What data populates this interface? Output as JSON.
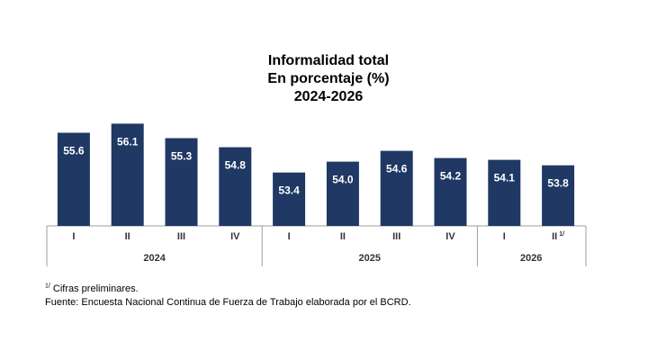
{
  "chart_data": {
    "type": "bar",
    "title": [
      "Informalidad total",
      "En porcentaje (%)",
      "2024-2026"
    ],
    "categories": [
      "I",
      "II",
      "III",
      "IV",
      "I",
      "II",
      "III",
      "IV",
      "I",
      "II"
    ],
    "category_markers": [
      "",
      "",
      "",
      "",
      "",
      "",
      "",
      "",
      "",
      "1/"
    ],
    "groups": [
      {
        "label": "2024",
        "count": 4
      },
      {
        "label": "2025",
        "count": 4
      },
      {
        "label": "2026",
        "count": 2
      }
    ],
    "values": [
      55.6,
      56.1,
      55.3,
      54.8,
      53.4,
      54.0,
      54.6,
      54.2,
      54.1,
      53.8
    ],
    "data_labels": [
      "55.6",
      "56.1",
      "55.3",
      "54.8",
      "53.4",
      "54.0",
      "54.6",
      "54.2",
      "54.1",
      "53.8"
    ],
    "bar_color": "#1f3864",
    "label_color": "#ffffff",
    "axis_color": "#9e9e9e",
    "value_axis_shown": false,
    "grid": false,
    "legend": "none"
  },
  "footnotes": {
    "marker": "1/",
    "preliminary": "Cifras preliminares.",
    "source": "Fuente: Encuesta Nacional Continua de Fuerza de Trabajo elaborada por el BCRD."
  }
}
